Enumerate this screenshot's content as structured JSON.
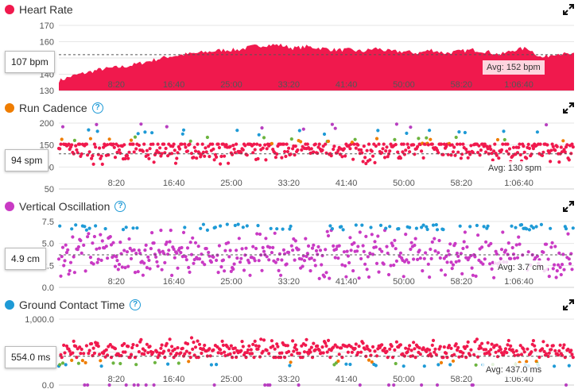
{
  "x_ticks": [
    "8:20",
    "16:40",
    "25:00",
    "33:20",
    "41:40",
    "50:00",
    "58:20",
    "1:06:40"
  ],
  "panels": [
    {
      "title": "Heart Rate",
      "color": "#f0194d",
      "help": false,
      "current_label": "107 bpm",
      "avg_label": "Avg: 152 bpm",
      "y_ticks": [
        "170",
        "160",
        "150",
        "140",
        "130"
      ],
      "chart_data": {
        "type": "area",
        "ylabel": "",
        "ylim": [
          130,
          170
        ],
        "xlim": [
          0,
          4480
        ],
        "x": [
          0,
          120,
          240,
          360,
          480,
          600,
          720,
          840,
          960,
          1080,
          1200,
          1320,
          1440,
          1560,
          1680,
          1800,
          1920,
          2040,
          2160,
          2280,
          2400,
          2520,
          2640,
          2760,
          2880,
          3000,
          3120,
          3240,
          3360,
          3480,
          3600,
          3720,
          3840,
          3960,
          4080,
          4200,
          4320,
          4440
        ],
        "values": [
          136,
          139,
          141,
          143,
          144,
          145,
          147,
          149,
          151,
          152,
          153,
          154,
          155,
          155,
          157,
          158,
          158,
          156,
          157,
          156,
          155,
          155,
          154,
          156,
          154,
          154,
          153,
          155,
          153,
          154,
          155,
          154,
          152,
          155,
          156,
          150,
          153,
          152
        ],
        "avg": 152
      }
    },
    {
      "title": "Run Cadence",
      "color": "#ef7d00",
      "help": true,
      "current_label": "94 spm",
      "avg_label": "Avg: 130 spm",
      "y_ticks": [
        "200",
        "150",
        "100",
        "50"
      ],
      "chart_data": {
        "type": "scatter",
        "ylabel": "",
        "ylim": [
          50,
          200
        ],
        "xlim": [
          0,
          4480
        ],
        "series": [
          {
            "color": "#f0194d",
            "values_range": [
              95,
              152
            ],
            "typical": 140
          },
          {
            "color": "#ef7d00",
            "values_range": [
              152,
              165
            ],
            "typical": 158
          },
          {
            "color": "#6cb43f",
            "values_range": [
              158,
              172
            ],
            "typical": 165
          },
          {
            "color": "#1e9ad6",
            "values_range": [
              172,
              185
            ],
            "typical": 178
          },
          {
            "color": "#b83fc0",
            "values_range": [
              185,
              200
            ],
            "typical": 190
          }
        ],
        "avg": 130
      }
    },
    {
      "title": "Vertical Oscillation",
      "color": "#c93ac4",
      "help": true,
      "current_label": "4.9 cm",
      "avg_label": "Avg: 3.7 cm",
      "y_ticks": [
        "7.5",
        "5.0",
        "2.5",
        "0.0"
      ],
      "chart_data": {
        "type": "scatter",
        "ylabel": "",
        "ylim": [
          0,
          7.5
        ],
        "xlim": [
          0,
          4480
        ],
        "series": [
          {
            "color": "#c93ac4",
            "values_range": [
              1.0,
              6.5
            ],
            "typical": 3.7
          },
          {
            "color": "#1e9ad6",
            "values_range": [
              6.5,
              7.2
            ],
            "typical": 6.8
          }
        ],
        "avg": 3.7
      }
    },
    {
      "title": "Ground Contact Time",
      "color": "#1e9ad6",
      "help": true,
      "current_label": "554.0 ms",
      "avg_label": "Avg: 437.0 ms",
      "y_ticks": [
        "1,000.0",
        "500.0",
        "0.0"
      ],
      "chart_data": {
        "type": "scatter",
        "ylabel": "",
        "ylim": [
          0,
          1000
        ],
        "xlim": [
          0,
          4480
        ],
        "series": [
          {
            "color": "#f0194d",
            "values_range": [
              420,
              750
            ],
            "typical": 530
          },
          {
            "color": "#ef7d00",
            "values_range": [
              330,
              380
            ],
            "typical": 350
          },
          {
            "color": "#6cb43f",
            "values_range": [
              300,
              340
            ],
            "typical": 320
          },
          {
            "color": "#1e9ad6",
            "values_range": [
              280,
              320
            ],
            "typical": 300
          },
          {
            "color": "#b83fc0",
            "values_range": [
              0,
              0
            ],
            "typical": 0
          }
        ],
        "avg": 437
      }
    }
  ]
}
